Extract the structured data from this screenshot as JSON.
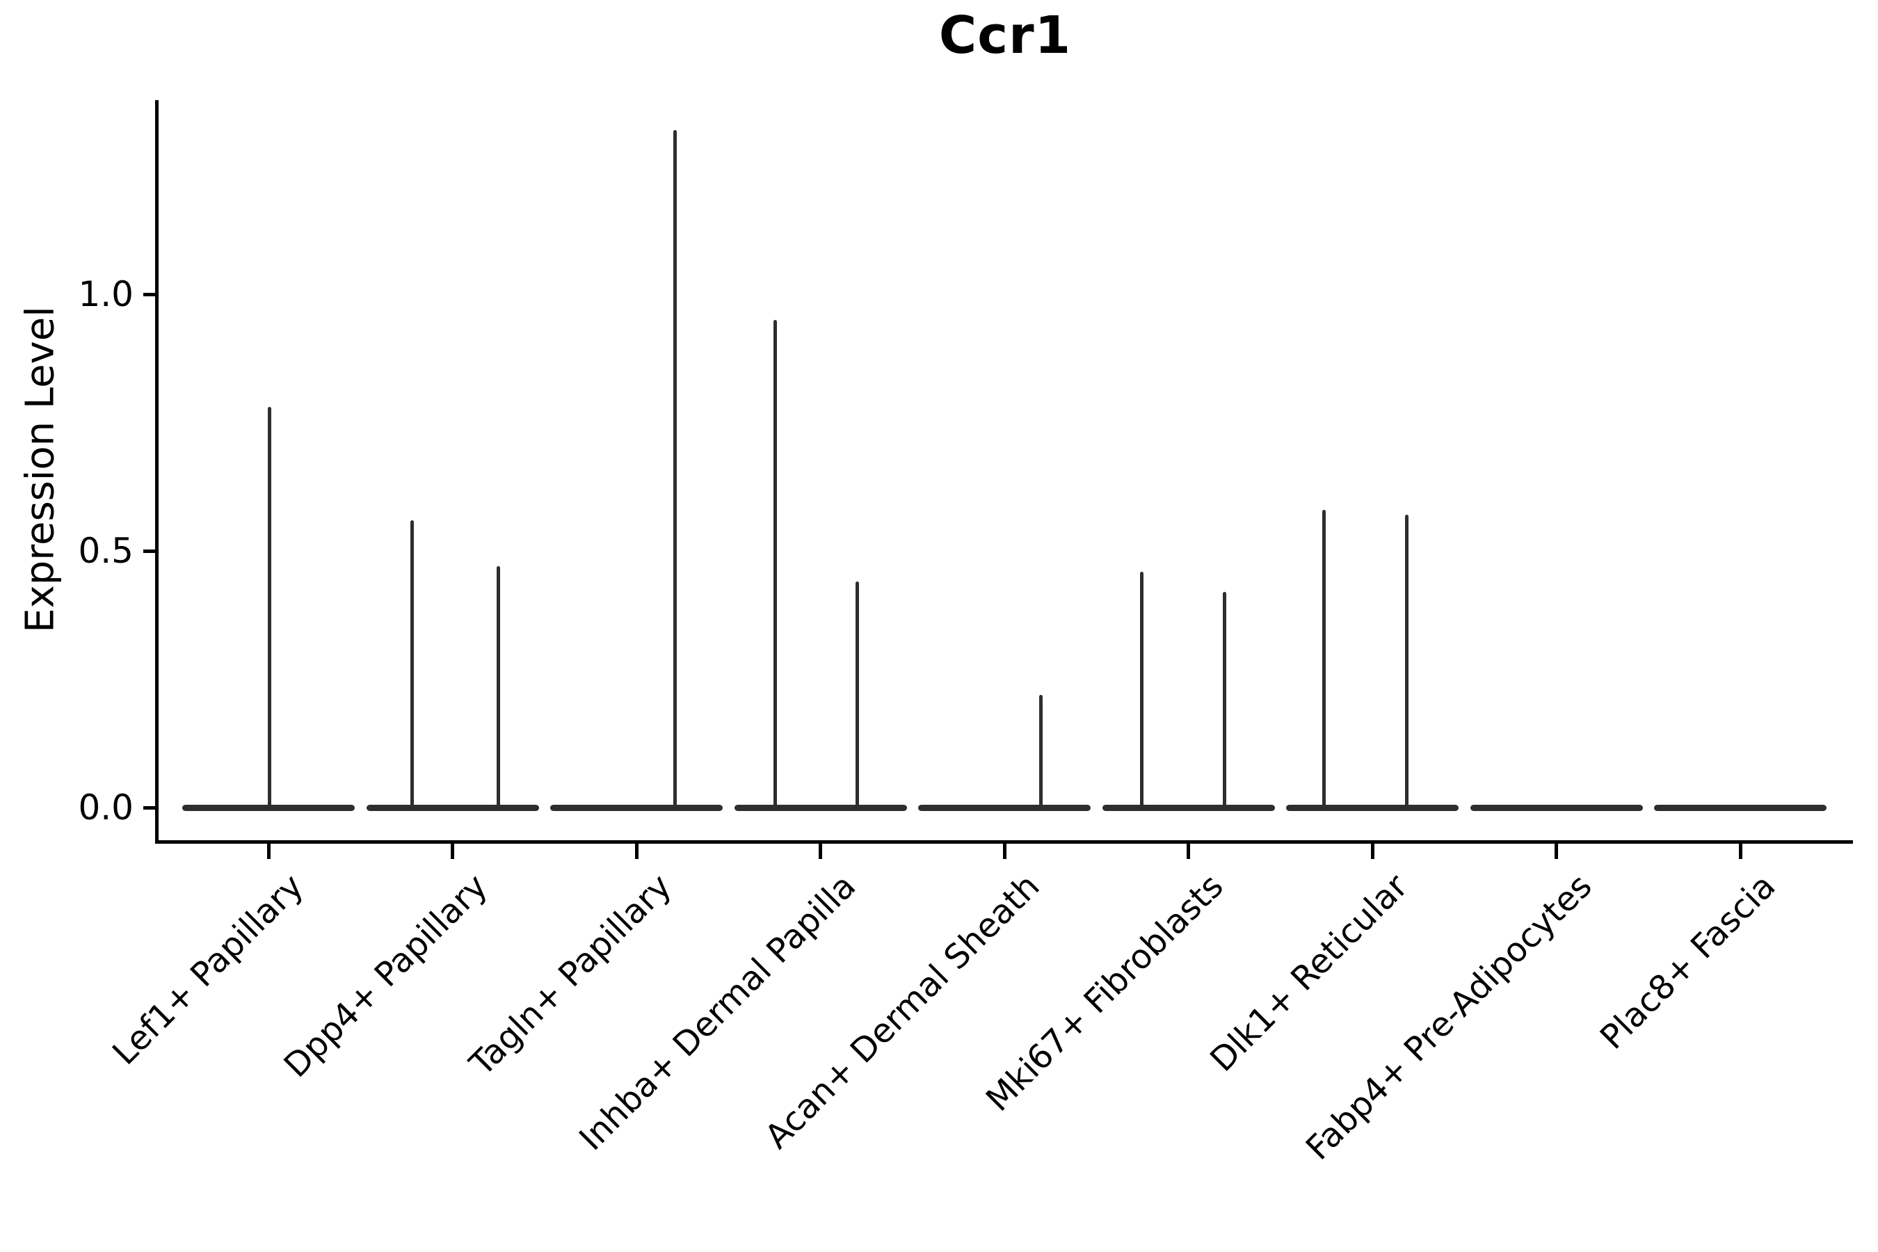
{
  "title": "Ccr1",
  "axes": {
    "ylabel": "Expression Level",
    "ytick_labels": [
      "0.0",
      "0.5",
      "1.0"
    ],
    "x_rotation_deg": 45
  },
  "colors": {
    "violin_line": "#2e2e2e",
    "spine": "#000000",
    "text": "#000000",
    "background": "#ffffff"
  },
  "chart_data": {
    "type": "violin",
    "title": "Ccr1",
    "xlabel": "",
    "ylabel": "Expression Level",
    "yticks": [
      0.0,
      0.5,
      1.0
    ],
    "ylim": [
      -0.07,
      1.38
    ],
    "grid": false,
    "legend": "none",
    "description": "Single-gene violin plot; every cluster has a flat density mass at expression 0, with thin KDE tail spikes rising to the maximum expression values listed per cluster.",
    "categories": [
      "Lef1+ Papillary",
      "Dpp4+ Papillary",
      "Tagln+ Papillary",
      "Inhba+ Dermal Papilla",
      "Acan+ Dermal Sheath",
      "Mki67+ Fibroblasts",
      "Dlk1+ Reticular",
      "Fabp4+ Pre-Adipocytes",
      "Plac8+ Fascia"
    ],
    "baseline_value": 0.0,
    "violin_width_frac": 0.94,
    "series": [
      {
        "category": "Lef1+ Papillary",
        "max_expression": 0.78,
        "spikes": [
          {
            "offset_frac": 0.004,
            "value": 0.78
          }
        ]
      },
      {
        "category": "Dpp4+ Papillary",
        "max_expression": 0.56,
        "spikes": [
          {
            "offset_frac": -0.221,
            "value": 0.56
          },
          {
            "offset_frac": 0.251,
            "value": 0.47
          }
        ]
      },
      {
        "category": "Tagln+ Papillary",
        "max_expression": 1.32,
        "spikes": [
          {
            "offset_frac": 0.208,
            "value": 1.32
          }
        ]
      },
      {
        "category": "Inhba+ Dermal Papilla",
        "max_expression": 0.95,
        "spikes": [
          {
            "offset_frac": -0.244,
            "value": 0.95
          },
          {
            "offset_frac": 0.202,
            "value": 0.44
          }
        ]
      },
      {
        "category": "Acan+ Dermal Sheath",
        "max_expression": 0.22,
        "spikes": [
          {
            "offset_frac": 0.2,
            "value": 0.22
          }
        ]
      },
      {
        "category": "Mki67+ Fibroblasts",
        "max_expression": 0.46,
        "spikes": [
          {
            "offset_frac": -0.255,
            "value": 0.46
          },
          {
            "offset_frac": 0.195,
            "value": 0.42
          }
        ]
      },
      {
        "category": "Dlk1+ Reticular",
        "max_expression": 0.58,
        "spikes": [
          {
            "offset_frac": -0.261,
            "value": 0.58
          },
          {
            "offset_frac": 0.189,
            "value": 0.57
          }
        ]
      },
      {
        "category": "Fabp4+ Pre-Adipocytes",
        "max_expression": 0.0,
        "spikes": []
      },
      {
        "category": "Plac8+ Fascia",
        "max_expression": 0.0,
        "spikes": []
      }
    ]
  }
}
